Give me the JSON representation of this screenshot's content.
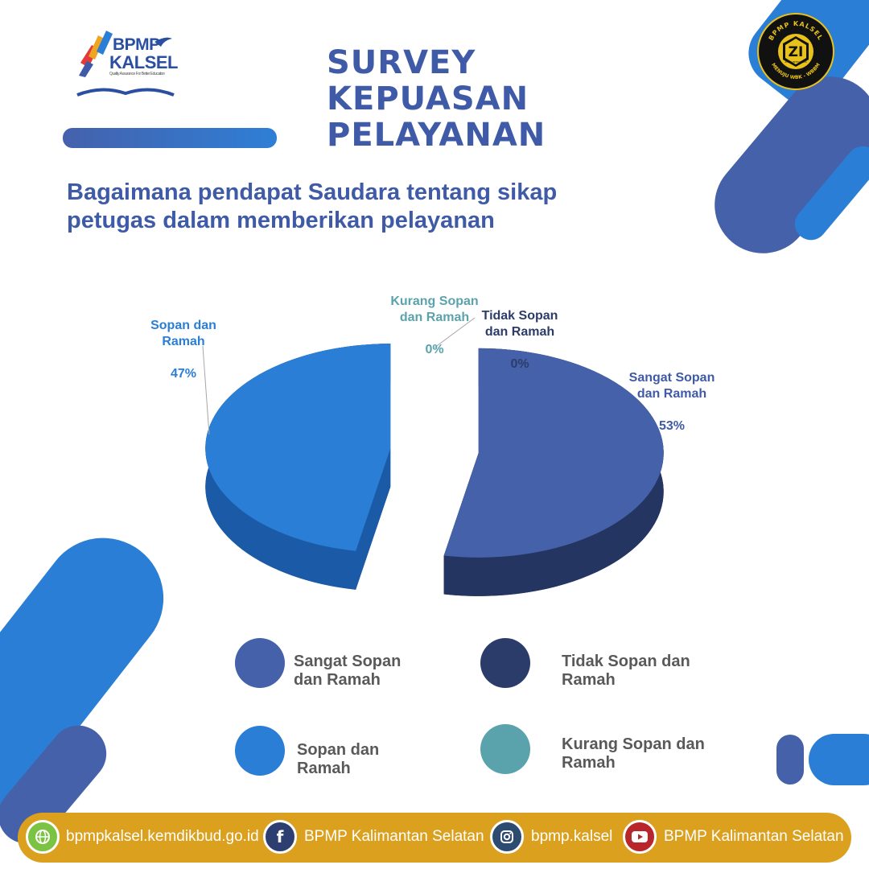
{
  "header": {
    "logo_text": "BPMP",
    "logo_subtext": "KALSEL",
    "logo_tagline": "Quality Assurance For Better Education",
    "title": "SURVEY\nKEPUASAN\nPELAYANAN",
    "question": "Bagaimana pendapat Saudara tentang sikap petugas dalam memberikan pelayanan"
  },
  "badge": {
    "top_text": "BPMP KALSEL",
    "center_text": "ZI",
    "sub_text": "ZONA INTEGRITAS",
    "bottom_text": "MENUJU WBK - WBBM"
  },
  "chart_data": {
    "type": "pie",
    "categories": [
      "Sangat Sopan dan Ramah",
      "Sopan dan Ramah",
      "Kurang Sopan dan Ramah",
      "Tidak Sopan dan Ramah"
    ],
    "values": [
      53,
      47,
      0,
      0
    ],
    "unit": "%",
    "colors": [
      "#4561a9",
      "#2a7ed6",
      "#5aa3ad",
      "#2c3c6a"
    ],
    "data_labels": [
      {
        "name": "Sangat Sopan\ndan Ramah",
        "value": "53%"
      },
      {
        "name": "Sopan dan\nRamah",
        "value": "47%"
      },
      {
        "name": "Kurang Sopan\ndan Ramah",
        "value": "0%"
      },
      {
        "name": "Tidak Sopan\ndan Ramah",
        "value": "0%"
      }
    ],
    "legend": [
      {
        "label": "Sangat Sopan dan Ramah",
        "color": "#4561a9"
      },
      {
        "label": "Tidak Sopan dan Ramah",
        "color": "#2c3c6a"
      },
      {
        "label": "Sopan dan Ramah",
        "color": "#2a7ed6"
      },
      {
        "label": "Kurang Sopan dan Ramah",
        "color": "#5aa3ad"
      }
    ],
    "legend_position": "bottom"
  },
  "footer": {
    "items": [
      {
        "icon": "globe-icon",
        "text": "bpmpkalsel.kemdikbud.go.id"
      },
      {
        "icon": "facebook-icon",
        "text": "BPMP Kalimantan Selatan"
      },
      {
        "icon": "instagram-icon",
        "text": "bpmp.kalsel"
      },
      {
        "icon": "youtube-icon",
        "text": "BPMP Kalimantan Selatan"
      }
    ]
  },
  "colors": {
    "primary": "#3f5aa7",
    "accent": "#2a7ed6",
    "footer": "#dba01e"
  }
}
